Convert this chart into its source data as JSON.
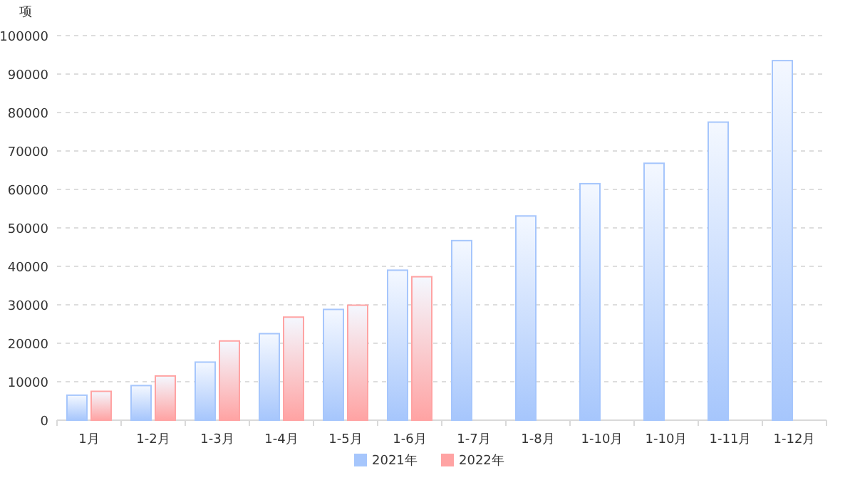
{
  "chart_data": {
    "type": "bar",
    "ylabel": "项",
    "categories": [
      "1月",
      "1-2月",
      "1-3月",
      "1-4月",
      "1-5月",
      "1-6月",
      "1-7月",
      "1-8月",
      "1-10月",
      "1-10月",
      "1-11月",
      "1-12月"
    ],
    "series": [
      {
        "name": "2021年",
        "color": "#a6c6fc",
        "values": [
          6500,
          9000,
          15100,
          22500,
          28800,
          39000,
          46700,
          53100,
          61500,
          66800,
          77500,
          93500
        ]
      },
      {
        "name": "2022年",
        "color": "#ffa3a3",
        "values": [
          7500,
          11500,
          20600,
          26800,
          29900,
          37300,
          null,
          null,
          null,
          null,
          null,
          null
        ]
      }
    ],
    "ylim": [
      0,
      100000
    ],
    "yticks": [
      0,
      10000,
      20000,
      30000,
      40000,
      50000,
      60000,
      70000,
      80000,
      90000,
      100000
    ],
    "grid": "y",
    "legend": "bottom"
  }
}
